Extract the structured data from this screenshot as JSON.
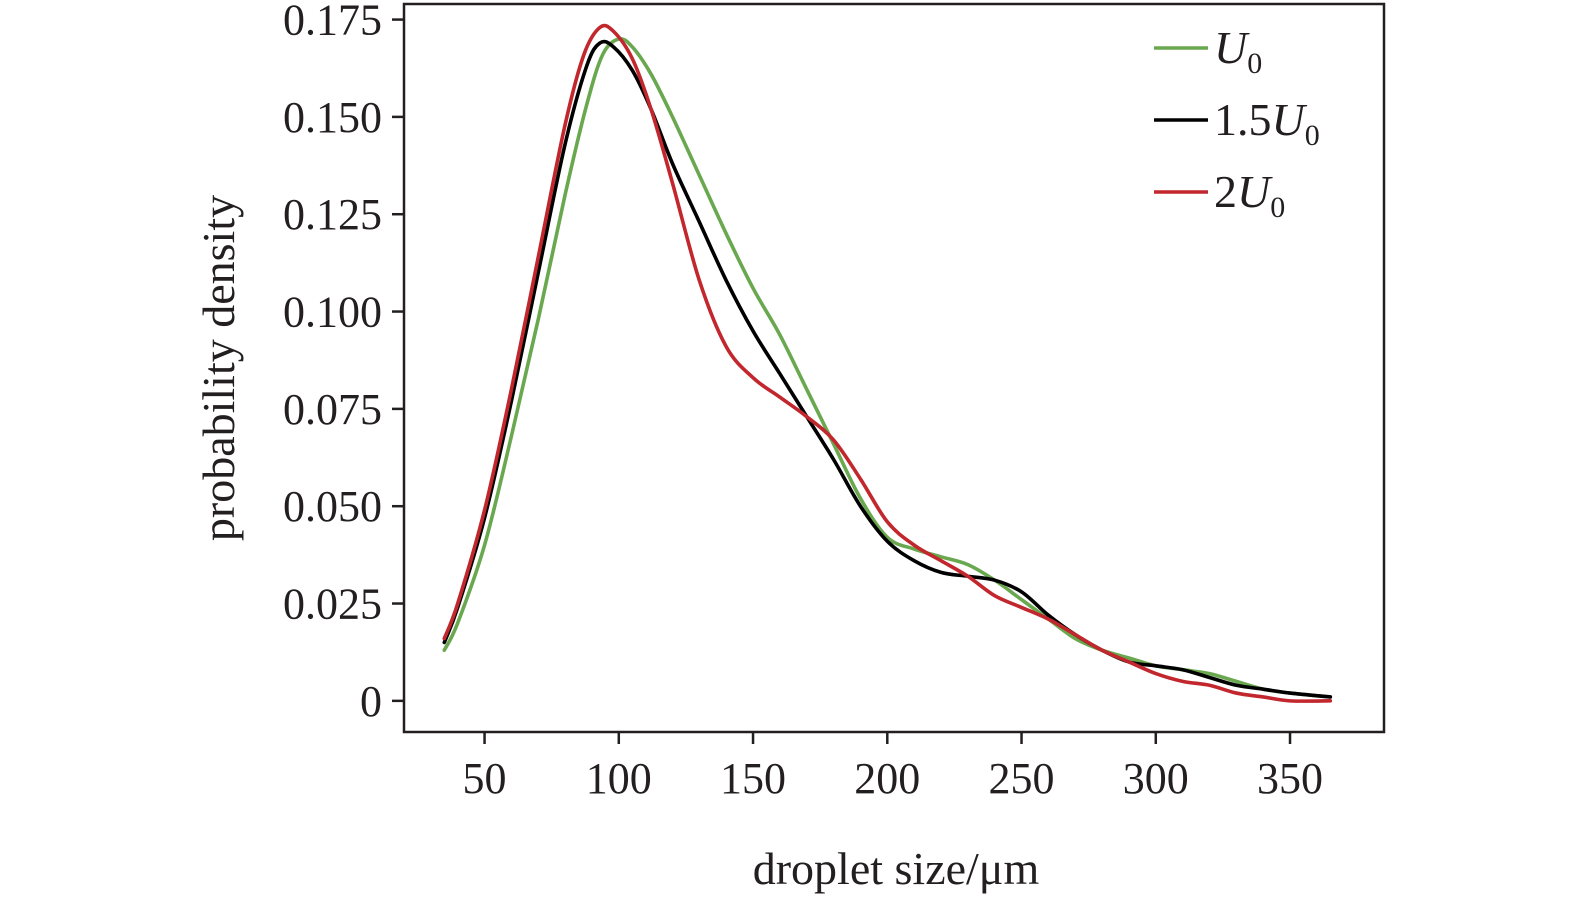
{
  "chart_data": {
    "type": "line",
    "xlabel": "droplet size/μm",
    "ylabel": "probability density",
    "xlim": [
      20,
      385
    ],
    "ylim": [
      -0.008,
      0.179
    ],
    "xticks": [
      50,
      100,
      150,
      200,
      250,
      300,
      350
    ],
    "yticks": [
      0,
      0.025,
      0.05,
      0.075,
      0.1,
      0.125,
      0.15,
      0.175
    ],
    "ytick_labels": [
      "0",
      "0.025",
      "0.050",
      "0.075",
      "0.100",
      "0.125",
      "0.150",
      "0.175"
    ],
    "grid": false,
    "legend_position": "top-right",
    "series": [
      {
        "name": "U0",
        "legend": {
          "prefix": "",
          "italic": "U",
          "sub": "0"
        },
        "color": "#6aa84f",
        "points": [
          [
            35,
            0.013
          ],
          [
            40,
            0.02
          ],
          [
            50,
            0.04
          ],
          [
            60,
            0.068
          ],
          [
            70,
            0.098
          ],
          [
            80,
            0.13
          ],
          [
            88,
            0.153
          ],
          [
            94,
            0.166
          ],
          [
            100,
            0.17
          ],
          [
            105,
            0.168
          ],
          [
            112,
            0.161
          ],
          [
            120,
            0.15
          ],
          [
            130,
            0.135
          ],
          [
            140,
            0.12
          ],
          [
            150,
            0.106
          ],
          [
            160,
            0.094
          ],
          [
            170,
            0.08
          ],
          [
            180,
            0.066
          ],
          [
            190,
            0.052
          ],
          [
            200,
            0.042
          ],
          [
            210,
            0.039
          ],
          [
            220,
            0.037
          ],
          [
            230,
            0.035
          ],
          [
            240,
            0.031
          ],
          [
            250,
            0.026
          ],
          [
            260,
            0.021
          ],
          [
            270,
            0.016
          ],
          [
            280,
            0.013
          ],
          [
            290,
            0.011
          ],
          [
            300,
            0.009
          ],
          [
            310,
            0.008
          ],
          [
            320,
            0.007
          ],
          [
            330,
            0.005
          ],
          [
            340,
            0.003
          ],
          [
            350,
            0.002
          ],
          [
            365,
            0.001
          ]
        ]
      },
      {
        "name": "1.5U0",
        "legend": {
          "prefix": "1.5",
          "italic": "U",
          "sub": "0"
        },
        "color": "#000000",
        "points": [
          [
            35,
            0.015
          ],
          [
            40,
            0.024
          ],
          [
            50,
            0.047
          ],
          [
            60,
            0.077
          ],
          [
            70,
            0.11
          ],
          [
            80,
            0.143
          ],
          [
            88,
            0.163
          ],
          [
            93,
            0.169
          ],
          [
            98,
            0.168
          ],
          [
            105,
            0.162
          ],
          [
            112,
            0.152
          ],
          [
            120,
            0.138
          ],
          [
            130,
            0.123
          ],
          [
            140,
            0.108
          ],
          [
            150,
            0.095
          ],
          [
            160,
            0.084
          ],
          [
            170,
            0.073
          ],
          [
            180,
            0.062
          ],
          [
            190,
            0.05
          ],
          [
            200,
            0.041
          ],
          [
            210,
            0.036
          ],
          [
            220,
            0.033
          ],
          [
            230,
            0.032
          ],
          [
            240,
            0.031
          ],
          [
            250,
            0.028
          ],
          [
            260,
            0.022
          ],
          [
            270,
            0.017
          ],
          [
            280,
            0.013
          ],
          [
            290,
            0.01
          ],
          [
            300,
            0.009
          ],
          [
            310,
            0.008
          ],
          [
            320,
            0.006
          ],
          [
            330,
            0.004
          ],
          [
            340,
            0.003
          ],
          [
            350,
            0.002
          ],
          [
            365,
            0.001
          ]
        ]
      },
      {
        "name": "2U0",
        "legend": {
          "prefix": "2",
          "italic": "U",
          "sub": "0"
        },
        "color": "#c1272d",
        "points": [
          [
            35,
            0.016
          ],
          [
            40,
            0.025
          ],
          [
            50,
            0.049
          ],
          [
            60,
            0.08
          ],
          [
            70,
            0.114
          ],
          [
            80,
            0.148
          ],
          [
            87,
            0.166
          ],
          [
            93,
            0.173
          ],
          [
            98,
            0.172
          ],
          [
            105,
            0.165
          ],
          [
            112,
            0.152
          ],
          [
            120,
            0.133
          ],
          [
            130,
            0.108
          ],
          [
            140,
            0.091
          ],
          [
            150,
            0.083
          ],
          [
            160,
            0.078
          ],
          [
            170,
            0.073
          ],
          [
            180,
            0.067
          ],
          [
            190,
            0.057
          ],
          [
            200,
            0.046
          ],
          [
            210,
            0.04
          ],
          [
            220,
            0.036
          ],
          [
            230,
            0.032
          ],
          [
            240,
            0.027
          ],
          [
            250,
            0.024
          ],
          [
            260,
            0.021
          ],
          [
            270,
            0.017
          ],
          [
            280,
            0.013
          ],
          [
            290,
            0.01
          ],
          [
            300,
            0.007
          ],
          [
            310,
            0.005
          ],
          [
            320,
            0.004
          ],
          [
            330,
            0.002
          ],
          [
            340,
            0.001
          ],
          [
            350,
            0.0
          ],
          [
            365,
            0.0
          ]
        ]
      }
    ]
  }
}
